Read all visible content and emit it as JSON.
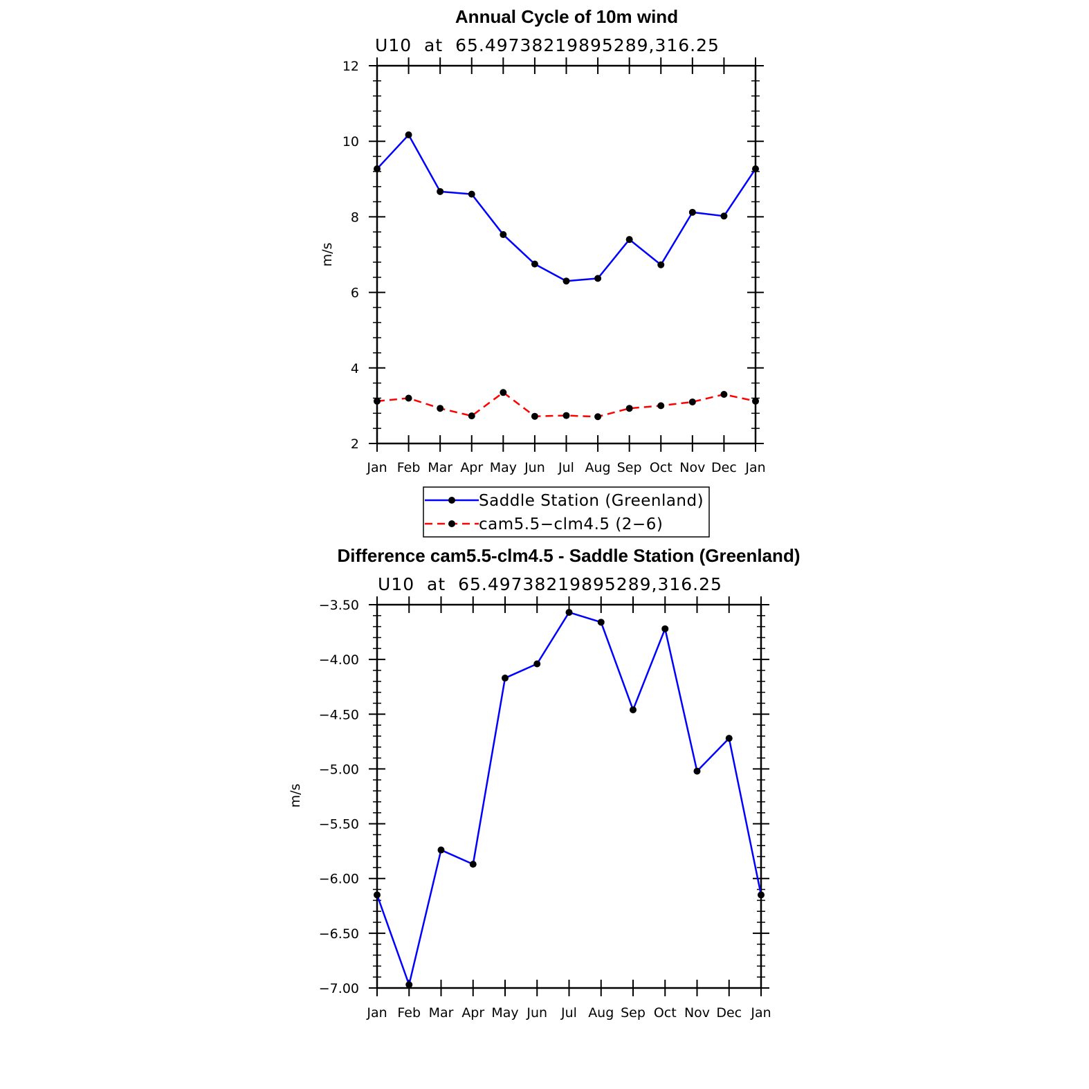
{
  "chart_data": [
    {
      "type": "line",
      "title": "Annual Cycle of 10m wind",
      "subtitle": "U10  at  65.49738219895289,316.25",
      "ylabel": "m/s",
      "xlabel": "",
      "categories": [
        "Jan",
        "Feb",
        "Mar",
        "Apr",
        "May",
        "Jun",
        "Jul",
        "Aug",
        "Sep",
        "Oct",
        "Nov",
        "Dec",
        "Jan"
      ],
      "ylim": [
        2,
        12
      ],
      "yticks": [
        "2",
        "4",
        "6",
        "8",
        "10",
        "12"
      ],
      "grid": false,
      "legend_position": "bottom",
      "series": [
        {
          "name": "Saddle Station (Greenland)",
          "color": "#0000ff",
          "dash": "solid",
          "values": [
            9.27,
            10.17,
            8.67,
            8.6,
            7.53,
            6.75,
            6.3,
            6.37,
            7.4,
            6.73,
            8.12,
            8.02,
            9.27
          ]
        },
        {
          "name": "cam5.5−clm4.5 (2−6)",
          "color": "#ff0000",
          "dash": "dashed",
          "values": [
            3.12,
            3.2,
            2.93,
            2.73,
            3.35,
            2.72,
            2.74,
            2.71,
            2.93,
            3.0,
            3.1,
            3.3,
            3.12
          ]
        }
      ]
    },
    {
      "type": "line",
      "title": "Difference cam5.5-clm4.5 - Saddle Station (Greenland)",
      "subtitle": "U10  at  65.49738219895289,316.25",
      "ylabel": "m/s",
      "xlabel": "",
      "categories": [
        "Jan",
        "Feb",
        "Mar",
        "Apr",
        "May",
        "Jun",
        "Jul",
        "Aug",
        "Sep",
        "Oct",
        "Nov",
        "Dec",
        "Jan"
      ],
      "ylim": [
        -7.0,
        -3.5
      ],
      "yticks": [
        "−7.00",
        "−6.50",
        "−6.00",
        "−5.50",
        "−5.00",
        "−4.50",
        "−4.00",
        "−3.50"
      ],
      "grid": false,
      "series": [
        {
          "color": "#0000ff",
          "dash": "solid",
          "values": [
            -6.15,
            -6.97,
            -5.74,
            -5.87,
            -4.17,
            -4.04,
            -3.57,
            -3.66,
            -4.46,
            -3.72,
            -5.02,
            -4.72,
            -6.15
          ]
        }
      ]
    }
  ]
}
